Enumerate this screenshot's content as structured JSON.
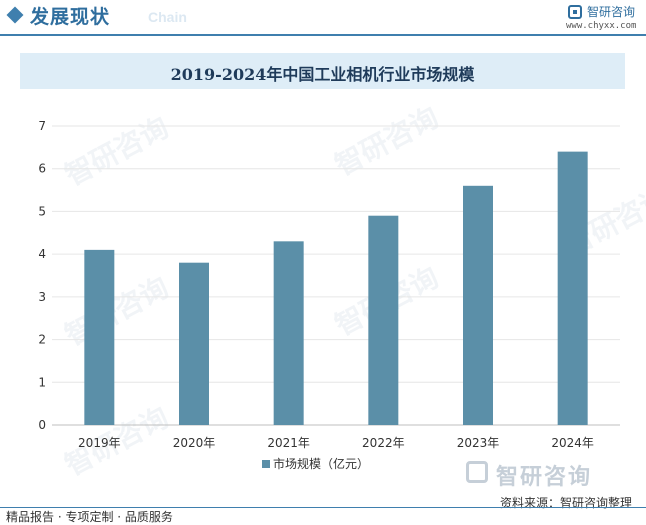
{
  "header": {
    "title": "发展现状",
    "subtitle": "Chain",
    "brand_name": "智研咨询",
    "brand_url": "www.chyxx.com"
  },
  "watermark": "智研咨询",
  "footer": {
    "brand": "智研咨询",
    "source": "资料来源：智研咨询整理",
    "services": "精品报告 · 专项定制 · 品质服务"
  },
  "colors": {
    "bar": "#5b8fa8",
    "accent": "#3f7fae",
    "title_bg": "#deedf7"
  },
  "chart_data": {
    "type": "bar",
    "title": "2019-2024年中国工业相机行业市场规模",
    "categories": [
      "2019年",
      "2020年",
      "2021年",
      "2022年",
      "2023年",
      "2024年"
    ],
    "series": [
      {
        "name": "市场规模（亿元）",
        "values": [
          4.1,
          3.8,
          4.3,
          4.9,
          5.6,
          6.4
        ]
      }
    ],
    "yticks": [
      "0",
      "1",
      "2",
      "3",
      "4",
      "5",
      "6",
      "7"
    ],
    "ylim": [
      0,
      7
    ],
    "grid": true,
    "legend": "bottom"
  }
}
